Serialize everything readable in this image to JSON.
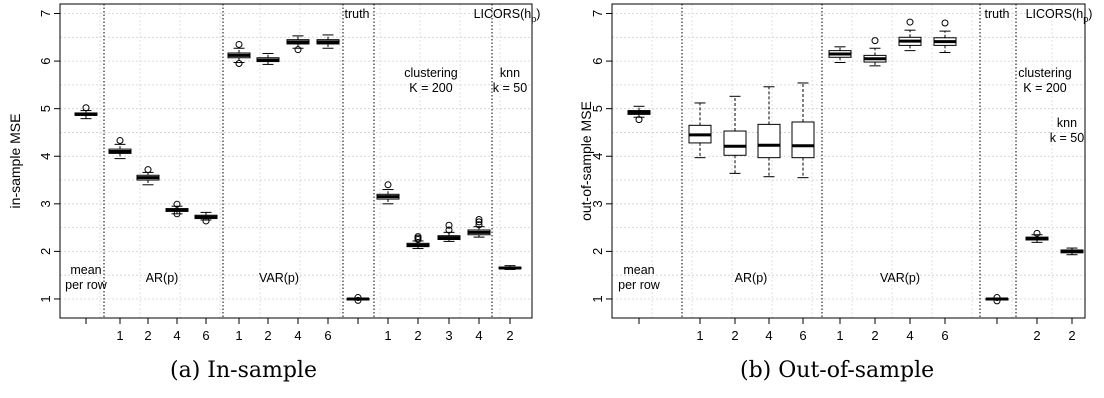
{
  "chart_data": [
    {
      "type": "boxplot",
      "panel_label": "(a) In-sample",
      "ylabel": "in-sample MSE",
      "ylim": [
        0.6,
        7.2
      ],
      "yticks": [
        1,
        2,
        3,
        4,
        5,
        6,
        7
      ],
      "grid": true,
      "groups": [
        {
          "label_lines": [
            "mean",
            "per row"
          ],
          "label_pos": "bottom"
        },
        {
          "label_lines": [
            "AR(p)"
          ],
          "label_pos": "bottom"
        },
        {
          "label_lines": [
            "VAR(p)"
          ],
          "label_pos": "bottom"
        },
        {
          "label_lines": [
            "truth"
          ],
          "label_pos": "top"
        },
        {
          "label_lines": [
            "clustering",
            "K = 200"
          ],
          "label_pos": "upper"
        },
        {
          "label_lines": [
            "knn",
            "k = 50"
          ],
          "label_pos": "upper"
        }
      ],
      "top_label": {
        "base": "LICORS(h",
        "sub": "p",
        "tail": ")"
      },
      "boxes": [
        {
          "group": 0,
          "tick": "",
          "min": 4.79,
          "q1": 4.86,
          "median": 4.88,
          "q3": 4.91,
          "max": 4.96,
          "outliers": [
            5.02
          ]
        },
        {
          "group": 1,
          "tick": "1",
          "min": 3.95,
          "q1": 4.06,
          "median": 4.1,
          "q3": 4.15,
          "max": 4.25,
          "outliers": [
            4.33
          ]
        },
        {
          "group": 1,
          "tick": "2",
          "min": 3.4,
          "q1": 3.5,
          "median": 3.55,
          "q3": 3.6,
          "max": 3.66,
          "outliers": [
            3.72
          ]
        },
        {
          "group": 1,
          "tick": "4",
          "min": 2.79,
          "q1": 2.84,
          "median": 2.87,
          "q3": 2.9,
          "max": 2.95,
          "outliers": [
            2.79,
            2.99
          ]
        },
        {
          "group": 1,
          "tick": "6",
          "min": 2.66,
          "q1": 2.69,
          "median": 2.72,
          "q3": 2.76,
          "max": 2.82,
          "outliers": [
            2.64
          ]
        },
        {
          "group": 2,
          "tick": "1",
          "min": 5.97,
          "q1": 6.07,
          "median": 6.12,
          "q3": 6.17,
          "max": 6.27,
          "outliers": [
            5.95,
            6.35
          ]
        },
        {
          "group": 2,
          "tick": "2",
          "min": 5.93,
          "q1": 5.99,
          "median": 6.02,
          "q3": 6.07,
          "max": 6.16,
          "outliers": []
        },
        {
          "group": 2,
          "tick": "4",
          "min": 6.27,
          "q1": 6.36,
          "median": 6.4,
          "q3": 6.45,
          "max": 6.53,
          "outliers": [
            6.24
          ]
        },
        {
          "group": 2,
          "tick": "6",
          "min": 6.27,
          "q1": 6.36,
          "median": 6.4,
          "q3": 6.45,
          "max": 6.55,
          "outliers": []
        },
        {
          "group": 3,
          "tick": "",
          "min": 0.98,
          "q1": 0.99,
          "median": 1.0,
          "q3": 1.01,
          "max": 1.02,
          "outliers": [
            0.97,
            1.03
          ]
        },
        {
          "group": 4,
          "tick": "1",
          "min": 3.0,
          "q1": 3.1,
          "median": 3.15,
          "q3": 3.2,
          "max": 3.3,
          "outliers": [
            3.4
          ]
        },
        {
          "group": 4,
          "tick": "2",
          "min": 2.06,
          "q1": 2.1,
          "median": 2.13,
          "q3": 2.17,
          "max": 2.22,
          "outliers": [
            2.25,
            2.28,
            2.31
          ]
        },
        {
          "group": 4,
          "tick": "3",
          "min": 2.21,
          "q1": 2.25,
          "median": 2.29,
          "q3": 2.33,
          "max": 2.4,
          "outliers": [
            2.45,
            2.55
          ]
        },
        {
          "group": 4,
          "tick": "4",
          "min": 2.3,
          "q1": 2.35,
          "median": 2.4,
          "q3": 2.45,
          "max": 2.52,
          "outliers": [
            2.56,
            2.62,
            2.67
          ]
        },
        {
          "group": 5,
          "tick": "2",
          "min": 1.62,
          "q1": 1.64,
          "median": 1.65,
          "q3": 1.67,
          "max": 1.7,
          "outliers": []
        }
      ]
    },
    {
      "type": "boxplot",
      "panel_label": "(b) Out-of-sample",
      "ylabel": "out-of-sample MSE",
      "ylim": [
        0.6,
        7.2
      ],
      "yticks": [
        1,
        2,
        3,
        4,
        5,
        6,
        7
      ],
      "grid": true,
      "groups": [
        {
          "label_lines": [
            "mean",
            "per row"
          ],
          "label_pos": "bottom"
        },
        {
          "label_lines": [
            "AR(p)"
          ],
          "label_pos": "bottom"
        },
        {
          "label_lines": [
            "VAR(p)"
          ],
          "label_pos": "bottom"
        },
        {
          "label_lines": [
            "truth"
          ],
          "label_pos": "top"
        },
        {
          "label_lines": [
            "clustering",
            "K = 200"
          ],
          "label_pos": "upper"
        },
        {
          "label_lines": [
            "knn",
            "k = 50"
          ],
          "label_pos": "mid"
        }
      ],
      "top_label": {
        "base": "LICORS(h",
        "sub": "p",
        "tail": ")"
      },
      "boxes": [
        {
          "group": 0,
          "tick": "",
          "min": 4.82,
          "q1": 4.88,
          "median": 4.92,
          "q3": 4.96,
          "max": 5.05,
          "outliers": [
            4.77
          ]
        },
        {
          "group": 1,
          "tick": "1",
          "min": 3.97,
          "q1": 4.28,
          "median": 4.45,
          "q3": 4.65,
          "max": 5.12,
          "outliers": []
        },
        {
          "group": 1,
          "tick": "2",
          "min": 3.64,
          "q1": 4.02,
          "median": 4.21,
          "q3": 4.53,
          "max": 5.26,
          "outliers": []
        },
        {
          "group": 1,
          "tick": "4",
          "min": 3.57,
          "q1": 3.97,
          "median": 4.23,
          "q3": 4.67,
          "max": 5.46,
          "outliers": []
        },
        {
          "group": 1,
          "tick": "6",
          "min": 3.55,
          "q1": 3.97,
          "median": 4.22,
          "q3": 4.72,
          "max": 5.54,
          "outliers": []
        },
        {
          "group": 2,
          "tick": "1",
          "min": 5.97,
          "q1": 6.08,
          "median": 6.15,
          "q3": 6.22,
          "max": 6.3,
          "outliers": []
        },
        {
          "group": 2,
          "tick": "2",
          "min": 5.9,
          "q1": 5.98,
          "median": 6.05,
          "q3": 6.12,
          "max": 6.27,
          "outliers": [
            6.43
          ]
        },
        {
          "group": 2,
          "tick": "4",
          "min": 6.22,
          "q1": 6.33,
          "median": 6.42,
          "q3": 6.5,
          "max": 6.65,
          "outliers": [
            6.82
          ]
        },
        {
          "group": 2,
          "tick": "6",
          "min": 6.18,
          "q1": 6.33,
          "median": 6.41,
          "q3": 6.49,
          "max": 6.63,
          "outliers": [
            6.8
          ]
        },
        {
          "group": 3,
          "tick": "",
          "min": 0.98,
          "q1": 0.99,
          "median": 1.0,
          "q3": 1.01,
          "max": 1.02,
          "outliers": [
            0.96,
            1.03
          ]
        },
        {
          "group": 4,
          "tick": "2",
          "min": 2.19,
          "q1": 2.24,
          "median": 2.27,
          "q3": 2.3,
          "max": 2.35,
          "outliers": [
            2.38
          ]
        },
        {
          "group": 5,
          "tick": "2",
          "min": 1.93,
          "q1": 1.97,
          "median": 2.0,
          "q3": 2.03,
          "max": 2.07,
          "outliers": []
        }
      ]
    }
  ]
}
